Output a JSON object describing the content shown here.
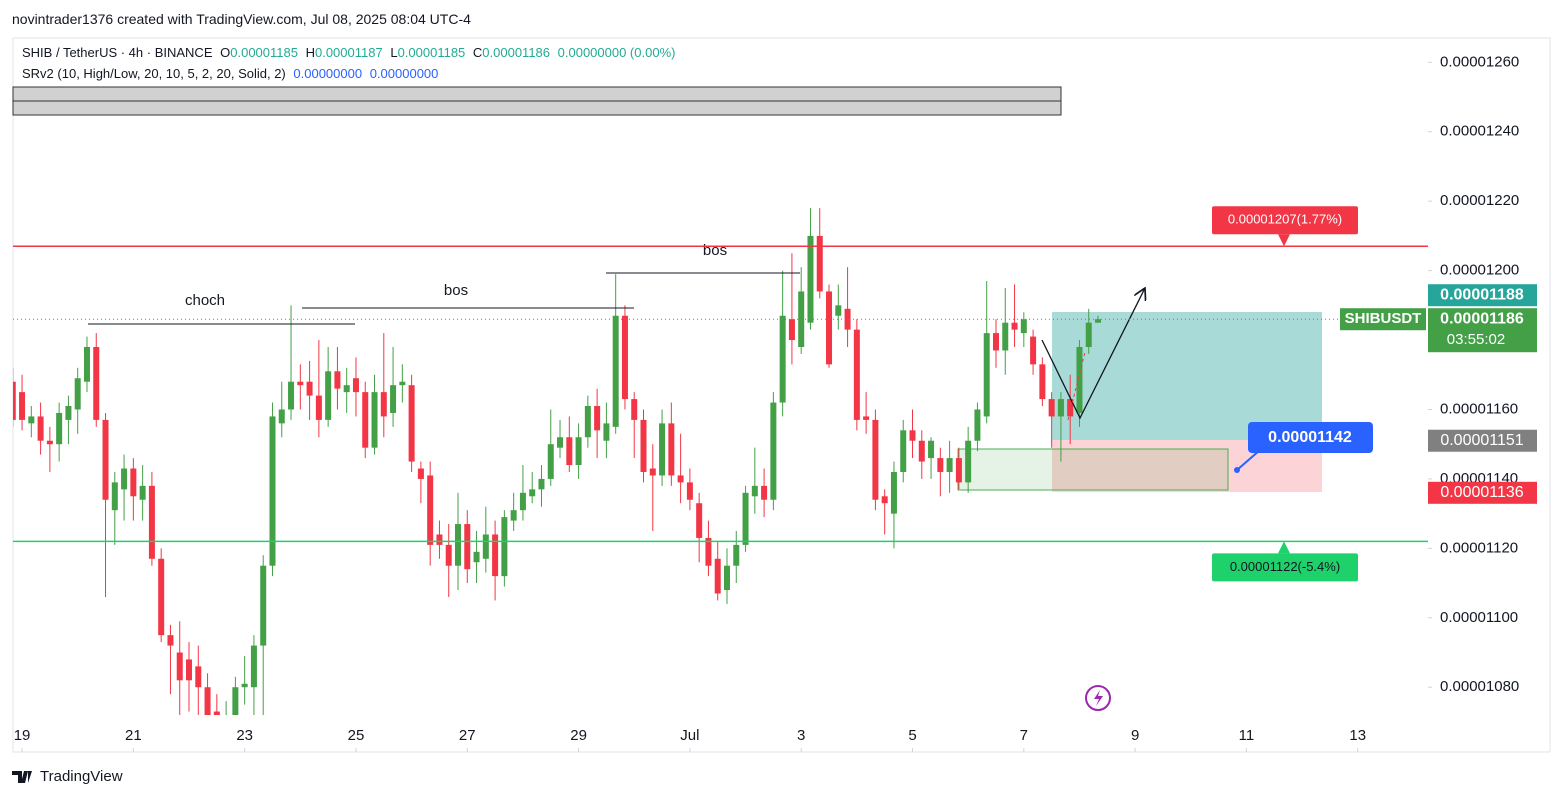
{
  "header": {
    "title": "novintrader1376 created with TradingView.com, Jul 08, 2025 08:04 UTC-4"
  },
  "legend": {
    "symbol": "SHIB / TetherUS · 4h · BINANCE",
    "ohlc": [
      {
        "key": "O",
        "text": "0.00001185"
      },
      {
        "key": "H",
        "text": "0.00001187"
      },
      {
        "key": "L",
        "text": "0.00001185"
      },
      {
        "key": "C",
        "text": "0.00001186"
      }
    ],
    "change": "0.00000000 (0.00%)",
    "indicator": "SRv2 (10, High/Low, 20, 10, 5, 2, 20, Solid, 2)",
    "indicator_values": [
      "0.00000000",
      "0.00000000"
    ]
  },
  "chart_data": {
    "type": "candlestick",
    "up_color": "#43a047",
    "down_color": "#f23645",
    "x": [
      -4,
      0,
      4,
      8,
      12,
      16,
      20,
      24,
      28,
      32,
      36,
      40,
      44,
      48,
      52,
      56,
      60,
      64,
      68,
      72,
      76,
      80,
      84,
      88,
      92,
      96,
      100,
      104,
      108,
      112,
      116,
      120,
      124,
      128,
      132,
      136,
      140,
      144,
      148,
      152,
      156,
      160,
      164,
      168,
      172,
      176,
      180,
      184,
      188,
      192,
      196,
      200,
      204,
      208,
      212,
      216,
      220,
      224,
      228,
      232,
      236,
      240,
      244,
      248,
      252,
      256,
      260,
      264,
      268,
      272,
      276,
      280,
      284,
      288,
      292,
      296,
      300,
      304,
      308,
      312,
      316,
      320,
      324,
      328,
      332,
      336,
      340,
      344,
      348,
      352,
      356,
      360,
      364,
      368,
      372,
      376,
      380,
      384,
      388,
      392,
      396,
      400,
      404,
      408,
      412,
      416,
      420,
      424,
      428,
      432,
      436,
      440,
      444,
      448,
      452,
      456,
      460,
      464
    ],
    "open": [
      1.168e-05,
      1.165e-05,
      1.156e-05,
      1.158e-05,
      1.151e-05,
      1.15e-05,
      1.157e-05,
      1.16e-05,
      1.168e-05,
      1.178e-05,
      1.157e-05,
      1.131e-05,
      1.137e-05,
      1.143e-05,
      1.134e-05,
      1.138e-05,
      1.117e-05,
      1.095e-05,
      1.09e-05,
      1.088e-05,
      1.086e-05,
      1.08e-05,
      1.073e-05,
      1.068e-05,
      1.072e-05,
      1.08e-05,
      1.08e-05,
      1.092e-05,
      1.115e-05,
      1.156e-05,
      1.16e-05,
      1.168e-05,
      1.168e-05,
      1.164e-05,
      1.157e-05,
      1.171e-05,
      1.165e-05,
      1.169e-05,
      1.165e-05,
      1.149e-05,
      1.165e-05,
      1.159e-05,
      1.167e-05,
      1.167e-05,
      1.143e-05,
      1.141e-05,
      1.124e-05,
      1.121e-05,
      1.115e-05,
      1.127e-05,
      1.116e-05,
      1.117e-05,
      1.124e-05,
      1.112e-05,
      1.128e-05,
      1.131e-05,
      1.135e-05,
      1.137e-05,
      1.14e-05,
      1.149e-05,
      1.152e-05,
      1.144e-05,
      1.152e-05,
      1.161e-05,
      1.151e-05,
      1.155e-05,
      1.187e-05,
      1.163e-05,
      1.157e-05,
      1.143e-05,
      1.141e-05,
      1.156e-05,
      1.141e-05,
      1.139e-05,
      1.133e-05,
      1.123e-05,
      1.117e-05,
      1.108e-05,
      1.115e-05,
      1.121e-05,
      1.135e-05,
      1.138e-05,
      1.134e-05,
      1.162e-05,
      1.186e-05,
      1.178e-05,
      1.185e-05,
      1.21e-05,
      1.194e-05,
      1.187e-05,
      1.189e-05,
      1.183e-05,
      1.158e-05,
      1.157e-05,
      1.135e-05,
      1.13e-05,
      1.142e-05,
      1.154e-05,
      1.151e-05,
      1.146e-05,
      1.146e-05,
      1.142e-05,
      1.146e-05,
      1.139e-05,
      1.151e-05,
      1.158e-05,
      1.182e-05,
      1.177e-05,
      1.185e-05,
      1.182e-05,
      1.181e-05,
      1.173e-05,
      1.163e-05,
      1.158e-05,
      1.163e-05,
      1.159e-05,
      1.178e-05,
      1.185e-05
    ],
    "high": [
      1.172e-05,
      1.17e-05,
      1.161e-05,
      1.162e-05,
      1.155e-05,
      1.162e-05,
      1.164e-05,
      1.172e-05,
      1.181e-05,
      1.182e-05,
      1.159e-05,
      1.142e-05,
      1.147e-05,
      1.146e-05,
      1.144e-05,
      1.142e-05,
      1.12e-05,
      1.098e-05,
      1.099e-05,
      1.093e-05,
      1.092e-05,
      1.084e-05,
      1.078e-05,
      1.076e-05,
      1.083e-05,
      1.089e-05,
      1.095e-05,
      1.118e-05,
      1.162e-05,
      1.168e-05,
      1.19e-05,
      1.173e-05,
      1.174e-05,
      1.18e-05,
      1.178e-05,
      1.178e-05,
      1.172e-05,
      1.175e-05,
      1.168e-05,
      1.17e-05,
      1.182e-05,
      1.178e-05,
      1.173e-05,
      1.17e-05,
      1.145e-05,
      1.145e-05,
      1.128e-05,
      1.127e-05,
      1.136e-05,
      1.131e-05,
      1.125e-05,
      1.132e-05,
      1.128e-05,
      1.131e-05,
      1.136e-05,
      1.144e-05,
      1.142e-05,
      1.144e-05,
      1.16e-05,
      1.157e-05,
      1.158e-05,
      1.156e-05,
      1.164e-05,
      1.166e-05,
      1.162e-05,
      1.199e-05,
      1.19e-05,
      1.165e-05,
      1.16e-05,
      1.15e-05,
      1.16e-05,
      1.162e-05,
      1.153e-05,
      1.143e-05,
      1.136e-05,
      1.128e-05,
      1.122e-05,
      1.12e-05,
      1.125e-05,
      1.138e-05,
      1.149e-05,
      1.143e-05,
      1.165e-05,
      1.2e-05,
      1.205e-05,
      1.201e-05,
      1.218e-05,
      1.218e-05,
      1.196e-05,
      1.196e-05,
      1.201e-05,
      1.186e-05,
      1.165e-05,
      1.16e-05,
      1.137e-05,
      1.145e-05,
      1.157e-05,
      1.16e-05,
      1.154e-05,
      1.152e-05,
      1.149e-05,
      1.151e-05,
      1.149e-05,
      1.155e-05,
      1.162e-05,
      1.197e-05,
      1.186e-05,
      1.195e-05,
      1.196e-05,
      1.188e-05,
      1.183e-05,
      1.175e-05,
      1.165e-05,
      1.165e-05,
      1.17e-05,
      1.18e-05,
      1.189e-05,
      1.187e-05
    ],
    "low": [
      1.155e-05,
      1.154e-05,
      1.152e-05,
      1.147e-05,
      1.142e-05,
      1.145e-05,
      1.15e-05,
      1.153e-05,
      1.165e-05,
      1.155e-05,
      1.106e-05,
      1.121e-05,
      1.128e-05,
      1.128e-05,
      1.128e-05,
      1.115e-05,
      1.093e-05,
      1.078e-05,
      1.071e-05,
      1.073e-05,
      1.072e-05,
      1.071e-05,
      1.065e-05,
      1.065e-05,
      1.069e-05,
      1.075e-05,
      1.072e-05,
      1.072e-05,
      1.112e-05,
      1.152e-05,
      1.157e-05,
      1.16e-05,
      1.157e-05,
      1.152e-05,
      1.155e-05,
      1.16e-05,
      1.159e-05,
      1.158e-05,
      1.146e-05,
      1.147e-05,
      1.152e-05,
      1.155e-05,
      1.162e-05,
      1.142e-05,
      1.133e-05,
      1.115e-05,
      1.117e-05,
      1.106e-05,
      1.108e-05,
      1.11e-05,
      1.11e-05,
      1.113e-05,
      1.105e-05,
      1.109e-05,
      1.125e-05,
      1.128e-05,
      1.133e-05,
      1.132e-05,
      1.138e-05,
      1.146e-05,
      1.142e-05,
      1.14e-05,
      1.149e-05,
      1.146e-05,
      1.146e-05,
      1.153e-05,
      1.16e-05,
      1.146e-05,
      1.139e-05,
      1.125e-05,
      1.138e-05,
      1.138e-05,
      1.133e-05,
      1.131e-05,
      1.116e-05,
      1.112e-05,
      1.105e-05,
      1.104e-05,
      1.11e-05,
      1.119e-05,
      1.13e-05,
      1.129e-05,
      1.131e-05,
      1.158e-05,
      1.173e-05,
      1.176e-05,
      1.183e-05,
      1.192e-05,
      1.172e-05,
      1.183e-05,
      1.178e-05,
      1.154e-05,
      1.153e-05,
      1.131e-05,
      1.124e-05,
      1.12e-05,
      1.139e-05,
      1.146e-05,
      1.14e-05,
      1.14e-05,
      1.135e-05,
      1.136e-05,
      1.137e-05,
      1.136e-05,
      1.148e-05,
      1.156e-05,
      1.172e-05,
      1.17e-05,
      1.178e-05,
      1.178e-05,
      1.17e-05,
      1.161e-05,
      1.149e-05,
      1.145e-05,
      1.15e-05,
      1.155e-05,
      1.176e-05,
      1.185e-05
    ],
    "close": [
      1.157e-05,
      1.157e-05,
      1.158e-05,
      1.151e-05,
      1.15e-05,
      1.159e-05,
      1.161e-05,
      1.169e-05,
      1.178e-05,
      1.157e-05,
      1.134e-05,
      1.139e-05,
      1.143e-05,
      1.135e-05,
      1.138e-05,
      1.117e-05,
      1.095e-05,
      1.092e-05,
      1.082e-05,
      1.082e-05,
      1.08e-05,
      1.072e-05,
      1.069e-05,
      1.072e-05,
      1.08e-05,
      1.081e-05,
      1.092e-05,
      1.115e-05,
      1.158e-05,
      1.16e-05,
      1.168e-05,
      1.167e-05,
      1.164e-05,
      1.157e-05,
      1.171e-05,
      1.166e-05,
      1.167e-05,
      1.165e-05,
      1.149e-05,
      1.165e-05,
      1.158e-05,
      1.167e-05,
      1.168e-05,
      1.145e-05,
      1.14e-05,
      1.121e-05,
      1.121e-05,
      1.115e-05,
      1.127e-05,
      1.114e-05,
      1.119e-05,
      1.124e-05,
      1.112e-05,
      1.129e-05,
      1.131e-05,
      1.136e-05,
      1.137e-05,
      1.14e-05,
      1.15e-05,
      1.152e-05,
      1.144e-05,
      1.152e-05,
      1.161e-05,
      1.154e-05,
      1.156e-05,
      1.187e-05,
      1.163e-05,
      1.157e-05,
      1.142e-05,
      1.141e-05,
      1.156e-05,
      1.141e-05,
      1.139e-05,
      1.134e-05,
      1.123e-05,
      1.115e-05,
      1.107e-05,
      1.115e-05,
      1.121e-05,
      1.136e-05,
      1.138e-05,
      1.134e-05,
      1.162e-05,
      1.187e-05,
      1.18e-05,
      1.194e-05,
      1.21e-05,
      1.194e-05,
      1.173e-05,
      1.19e-05,
      1.183e-05,
      1.157e-05,
      1.157e-05,
      1.134e-05,
      1.133e-05,
      1.142e-05,
      1.154e-05,
      1.151e-05,
      1.145e-05,
      1.151e-05,
      1.142e-05,
      1.146e-05,
      1.139e-05,
      1.151e-05,
      1.16e-05,
      1.182e-05,
      1.177e-05,
      1.185e-05,
      1.183e-05,
      1.186e-05,
      1.173e-05,
      1.163e-05,
      1.158e-05,
      1.163e-05,
      1.158e-05,
      1.178e-05,
      1.185e-05,
      1.186e-05
    ],
    "xlim": [
      -3.9,
      606.3
    ],
    "xticks": [
      {
        "value": 0,
        "label": "19"
      },
      {
        "value": 48,
        "label": "21"
      },
      {
        "value": 96,
        "label": "23"
      },
      {
        "value": 144,
        "label": "25"
      },
      {
        "value": 192,
        "label": "27"
      },
      {
        "value": 240,
        "label": "29"
      },
      {
        "value": 288,
        "label": "Jul"
      },
      {
        "value": 336,
        "label": "3"
      },
      {
        "value": 384,
        "label": "5"
      },
      {
        "value": 432,
        "label": "7"
      },
      {
        "value": 480,
        "label": "9"
      },
      {
        "value": 528,
        "label": "11"
      },
      {
        "value": 576,
        "label": "13"
      }
    ],
    "ylim": [
      1.072e-05,
      1.267e-05
    ],
    "yticks": [
      {
        "value": 1.08e-05,
        "label": "0.00001080"
      },
      {
        "value": 1.1e-05,
        "label": "0.00001100"
      },
      {
        "value": 1.12e-05,
        "label": "0.00001120"
      },
      {
        "value": 1.14e-05,
        "label": "0.00001140"
      },
      {
        "value": 1.16e-05,
        "label": "0.00001160"
      },
      {
        "value": 1.18e-05,
        "label": "0.00001180"
      },
      {
        "value": 1.2e-05,
        "label": "0.00001200"
      },
      {
        "value": 1.22e-05,
        "label": "0.00001220"
      },
      {
        "value": 1.24e-05,
        "label": "0.00001240"
      },
      {
        "value": 1.26e-05,
        "label": "0.00001260"
      }
    ],
    "hlines": [
      {
        "value": 1.207e-05,
        "label": "0.00001207(1.77%)",
        "color": "#f23645"
      },
      {
        "value": 1.122e-05,
        "label": "0.00001122(-5.4%)",
        "color": "#1fd16b"
      }
    ],
    "price_labels": [
      {
        "value": 1.188e-05,
        "label": "0.00001188",
        "color": "#26a69a"
      },
      {
        "value": 1.186e-05,
        "label": "0.00001186",
        "color": "#43a047"
      },
      {
        "value": 1.151e-05,
        "label": "0.00001151",
        "color": "#808080"
      },
      {
        "value": 1.136e-05,
        "label": "0.00001136",
        "color": "#f23645"
      }
    ],
    "symbol_tag": "SHIBUSDT",
    "countdown": "03:55:02",
    "callout": "0.00001142",
    "annotations": [
      "choch",
      "bos",
      "bos"
    ]
  },
  "footer": {
    "brand": "TradingView"
  }
}
